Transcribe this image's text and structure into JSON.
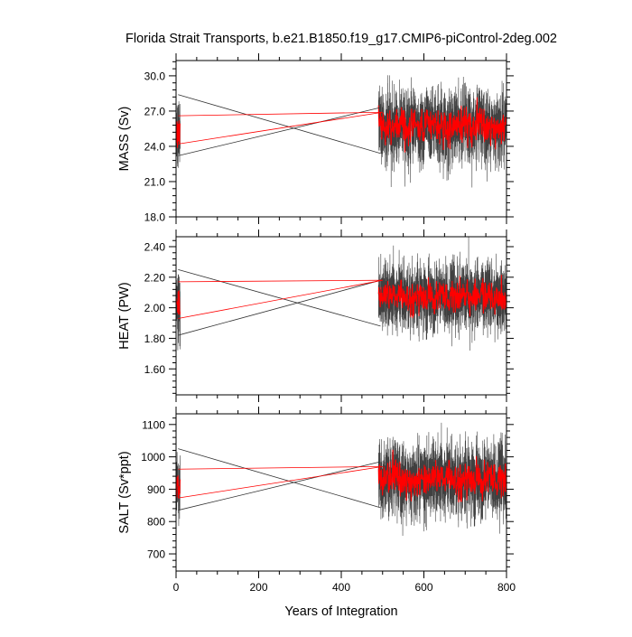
{
  "chart_data": {
    "type": "line",
    "title": "Florida Strait Transports, b.e21.B1850.f19_g17.CMIP6-piControl-2deg.002",
    "xlabel": "Years of Integration",
    "xlim": [
      0,
      800
    ],
    "xticks": [
      "0",
      "200",
      "400",
      "600",
      "800"
    ],
    "colors": {
      "raw": "#000000",
      "smoothed": "#ff0000"
    },
    "panels": [
      {
        "ylabel": "MASS (Sv)",
        "ylim": [
          18.0,
          31.3
        ],
        "yticks": [
          18.0,
          21.0,
          24.0,
          27.0,
          30.0
        ],
        "ytick_labels": [
          "18.0",
          "21.0",
          "24.0",
          "27.0",
          "30.0"
        ],
        "segments": [
          {
            "years": [
              0,
              10
            ],
            "mean": 25.3,
            "std": 1.3
          },
          {
            "years": [
              490,
              800
            ],
            "mean": 25.7,
            "std": 1.4
          }
        ],
        "connectors": [
          {
            "color": "black",
            "from": [
              5,
              28.4
            ],
            "to": [
              495,
              23.4
            ]
          },
          {
            "color": "black",
            "from": [
              5,
              23.2
            ],
            "to": [
              495,
              27.3
            ]
          },
          {
            "color": "red",
            "from": [
              5,
              26.6
            ],
            "to": [
              500,
              26.9
            ]
          },
          {
            "color": "red",
            "from": [
              5,
              24.2
            ],
            "to": [
              500,
              26.9
            ]
          }
        ]
      },
      {
        "ylabel": "HEAT (PW)",
        "ylim": [
          1.43,
          2.465
        ],
        "yticks": [
          1.6,
          1.8,
          2.0,
          2.2,
          2.4
        ],
        "ytick_labels": [
          "1.60",
          "1.80",
          "2.00",
          "2.20",
          "2.40"
        ],
        "segments": [
          {
            "years": [
              0,
              10
            ],
            "mean": 2.03,
            "std": 0.1
          },
          {
            "years": [
              490,
              800
            ],
            "mean": 2.07,
            "std": 0.1
          }
        ],
        "connectors": [
          {
            "color": "black",
            "from": [
              5,
              2.25
            ],
            "to": [
              495,
              1.88
            ]
          },
          {
            "color": "black",
            "from": [
              5,
              1.82
            ],
            "to": [
              495,
              2.18
            ]
          },
          {
            "color": "red",
            "from": [
              5,
              2.17
            ],
            "to": [
              500,
              2.18
            ]
          },
          {
            "color": "red",
            "from": [
              5,
              1.93
            ],
            "to": [
              500,
              2.18
            ]
          }
        ]
      },
      {
        "ylabel": "SALT (Sv*ppt)",
        "ylim": [
          647,
          1133
        ],
        "yticks": [
          700,
          800,
          900,
          1000,
          1100
        ],
        "ytick_labels": [
          "700",
          "800",
          "900",
          "1000",
          "1100"
        ],
        "segments": [
          {
            "years": [
              0,
              10
            ],
            "mean": 915,
            "std": 50
          },
          {
            "years": [
              490,
              800
            ],
            "mean": 930,
            "std": 52
          }
        ],
        "connectors": [
          {
            "color": "black",
            "from": [
              5,
              1025
            ],
            "to": [
              495,
              843
            ]
          },
          {
            "color": "black",
            "from": [
              5,
              835
            ],
            "to": [
              495,
              985
            ]
          },
          {
            "color": "red",
            "from": [
              5,
              962
            ],
            "to": [
              500,
              970
            ]
          },
          {
            "color": "red",
            "from": [
              5,
              873
            ],
            "to": [
              500,
              970
            ]
          }
        ]
      }
    ]
  }
}
